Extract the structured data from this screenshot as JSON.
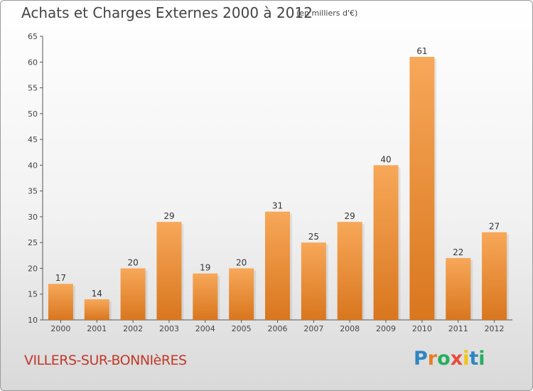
{
  "header": {
    "title": "Achats et Charges Externes 2000 à 2012",
    "unit": "(en milliers d'€)"
  },
  "footer": {
    "commune": "VILLERS-SUR-BONNIèRES",
    "logo": "Proxiti",
    "logo_letters": [
      "P",
      "r",
      "o",
      "x",
      "i",
      "t",
      "i"
    ],
    "logo_colors": [
      "#2e86c1",
      "#e67e22",
      "#27ae60",
      "#e74c3c",
      "#f1c40f",
      "#2e86c1",
      "#27ae60"
    ]
  },
  "chart_data": {
    "type": "bar",
    "categories": [
      "2000",
      "2001",
      "2002",
      "2003",
      "2004",
      "2005",
      "2006",
      "2007",
      "2008",
      "2009",
      "2010",
      "2011",
      "2012"
    ],
    "values": [
      17,
      14,
      20,
      29,
      19,
      20,
      31,
      25,
      29,
      40,
      61,
      22,
      27
    ],
    "title": "Achats et Charges Externes 2000 à 2012",
    "xlabel": "",
    "ylabel": "",
    "ylim": [
      10,
      65
    ],
    "yticks": [
      10,
      15,
      20,
      25,
      30,
      35,
      40,
      45,
      50,
      55,
      60,
      65
    ],
    "grid": false,
    "bar_color_top": "#f7a859",
    "bar_color_bottom": "#d9761e"
  }
}
